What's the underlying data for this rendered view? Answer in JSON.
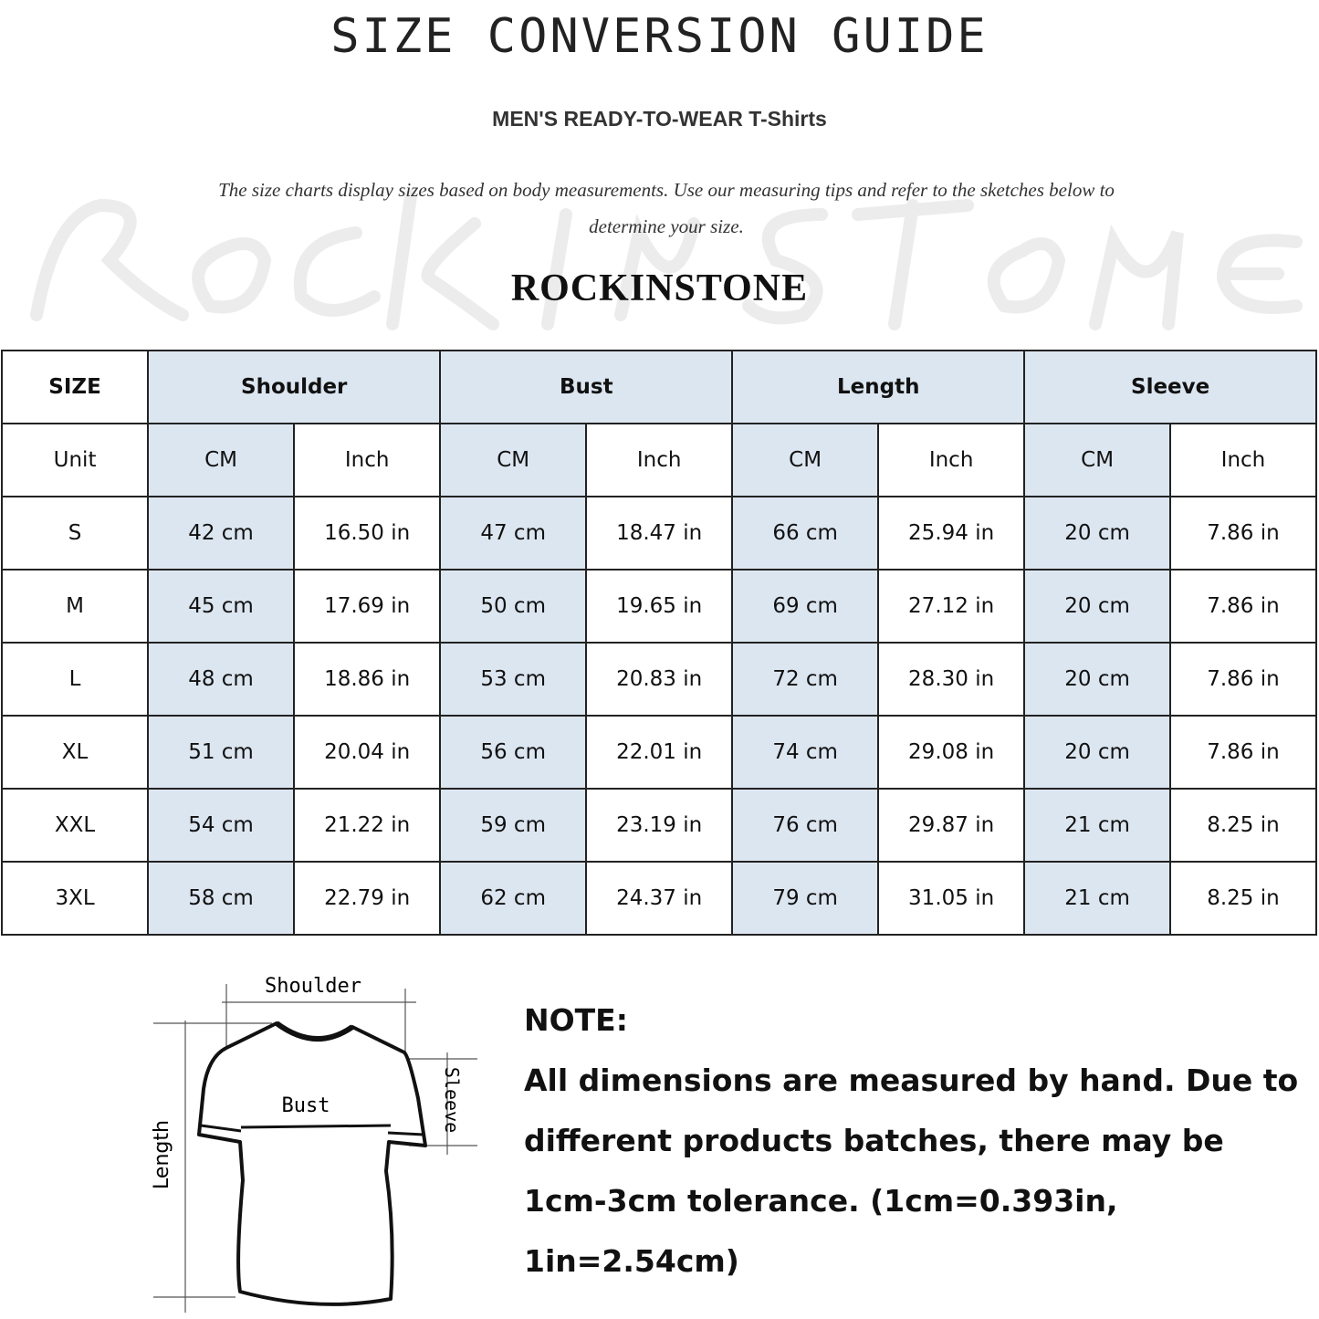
{
  "title": "SIZE CONVERSION GUIDE",
  "subtitle": "MEN'S READY-TO-WEAR T-Shirts",
  "description": "The size charts display sizes based on body measurements. Use our measuring tips and refer to the sketches below to determine your size.",
  "watermark": "ROCKINSTONE",
  "brand": "ROCKINSTONE",
  "colors": {
    "header_fill": "#dce6f1",
    "border": "#222222"
  },
  "table": {
    "size_header": "SIZE",
    "groups": [
      "Shoulder",
      "Bust",
      "Length",
      "Sleeve"
    ],
    "unit_label": "Unit",
    "units": [
      "CM",
      "Inch",
      "CM",
      "Inch",
      "CM",
      "Inch",
      "CM",
      "Inch"
    ],
    "rows": [
      {
        "size": "S",
        "values": [
          "42 cm",
          "16.50 in",
          "47 cm",
          "18.47  in",
          "66 cm",
          "25.94  in",
          "20 cm",
          "7.86  in"
        ]
      },
      {
        "size": "M",
        "values": [
          "45 cm",
          "17.69  in",
          "50 cm",
          "19.65  in",
          "69 cm",
          "27.12  in",
          "20 cm",
          "7.86  in"
        ]
      },
      {
        "size": "L",
        "values": [
          "48 cm",
          "18.86  in",
          "53 cm",
          "20.83  in",
          "72 cm",
          "28.30  in",
          "20 cm",
          "7.86  in"
        ]
      },
      {
        "size": "XL",
        "values": [
          "51 cm",
          "20.04  in",
          "56 cm",
          "22.01  in",
          "74 cm",
          "29.08  in",
          "20 cm",
          "7.86  in"
        ]
      },
      {
        "size": "XXL",
        "values": [
          "54 cm",
          "21.22  in",
          "59 cm",
          "23.19  in",
          "76 cm",
          "29.87  in",
          "21 cm",
          "8.25  in"
        ]
      },
      {
        "size": "3XL",
        "values": [
          "58 cm",
          "22.79  in",
          "62 cm",
          "24.37  in",
          "79 cm",
          "31.05  in",
          "21 cm",
          "8.25  in"
        ]
      }
    ]
  },
  "diagram": {
    "shoulder": "Shoulder",
    "bust": "Bust",
    "length": "Length",
    "sleeve": "Sleeve"
  },
  "note": {
    "heading": "NOTE:",
    "body": "All dimensions are measured by hand. Due to different products batches, there may be 1cm-3cm tolerance. (1cm=0.393in, 1in=2.54cm)"
  }
}
